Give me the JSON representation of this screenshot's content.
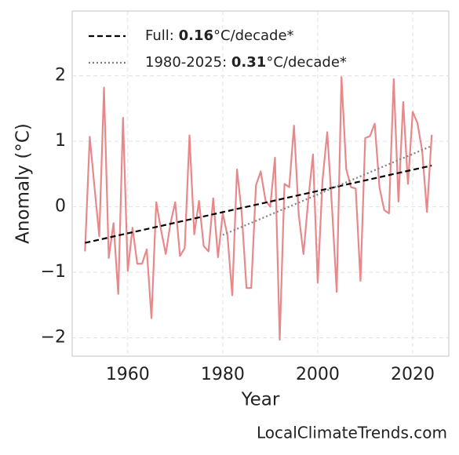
{
  "chart_data": {
    "type": "line",
    "xlabel": "Year",
    "ylabel": "Anomaly (°C)",
    "source": "LocalClimateTrends.com",
    "xlim": [
      1948.3,
      2027.6
    ],
    "ylim": [
      -2.28,
      2.99
    ],
    "xticks": [
      1960,
      1980,
      2000,
      2020
    ],
    "yticks": [
      {
        "value": -2,
        "label": "−2"
      },
      {
        "value": -1,
        "label": "−1"
      },
      0,
      1,
      2
    ],
    "grid": true,
    "legend": "upper left",
    "series": [
      {
        "name": "Full: 0.16°C/decade*",
        "bold": "0.16",
        "color": "#000000",
        "style": "dashed",
        "legend": true,
        "x": [
          1951,
          2024
        ],
        "values": [
          -0.55,
          0.63
        ]
      },
      {
        "name": "1980-2025: 0.31°C/decade*",
        "bold": "0.31",
        "color": "#808080",
        "style": "dotted",
        "legend": true,
        "x": [
          1980,
          2024
        ],
        "values": [
          -0.43,
          0.93
        ]
      },
      {
        "color": "#e8888a",
        "style": "solid",
        "legend": false,
        "x": [
          1951,
          1952,
          1953,
          1954,
          1955,
          1956,
          1957,
          1958,
          1959,
          1960,
          1961,
          1962,
          1963,
          1964,
          1965,
          1966,
          1967,
          1968,
          1969,
          1970,
          1971,
          1972,
          1973,
          1974,
          1975,
          1976,
          1977,
          1978,
          1979,
          1980,
          1981,
          1982,
          1983,
          1984,
          1985,
          1986,
          1987,
          1988,
          1989,
          1990,
          1991,
          1992,
          1993,
          1994,
          1995,
          1996,
          1997,
          1998,
          1999,
          2000,
          2001,
          2002,
          2003,
          2004,
          2005,
          2006,
          2007,
          2008,
          2009,
          2010,
          2011,
          2012,
          2013,
          2014,
          2015,
          2016,
          2017,
          2018,
          2019,
          2020,
          2021,
          2022,
          2023,
          2024
        ],
        "values": [
          -0.68,
          1.07,
          0.3,
          -0.45,
          1.82,
          -0.78,
          -0.25,
          -1.33,
          1.36,
          -0.98,
          -0.32,
          -0.87,
          -0.87,
          -0.65,
          -1.7,
          0.07,
          -0.35,
          -0.72,
          -0.25,
          0.07,
          -0.75,
          -0.63,
          1.09,
          -0.42,
          0.09,
          -0.6,
          -0.68,
          0.13,
          -0.77,
          -0.1,
          -0.44,
          -1.35,
          0.57,
          -0.1,
          -1.24,
          -1.24,
          0.33,
          0.54,
          0.1,
          0.0,
          0.75,
          -2.03,
          0.35,
          0.3,
          1.24,
          -0.12,
          -0.72,
          0.1,
          0.8,
          -1.16,
          0.4,
          1.14,
          0.0,
          -1.3,
          1.98,
          0.58,
          0.3,
          0.28,
          -1.13,
          1.05,
          1.08,
          1.27,
          0.3,
          -0.05,
          -0.1,
          1.95,
          0.08,
          1.6,
          0.35,
          1.45,
          1.28,
          0.85,
          -0.08,
          1.1
        ]
      }
    ]
  }
}
